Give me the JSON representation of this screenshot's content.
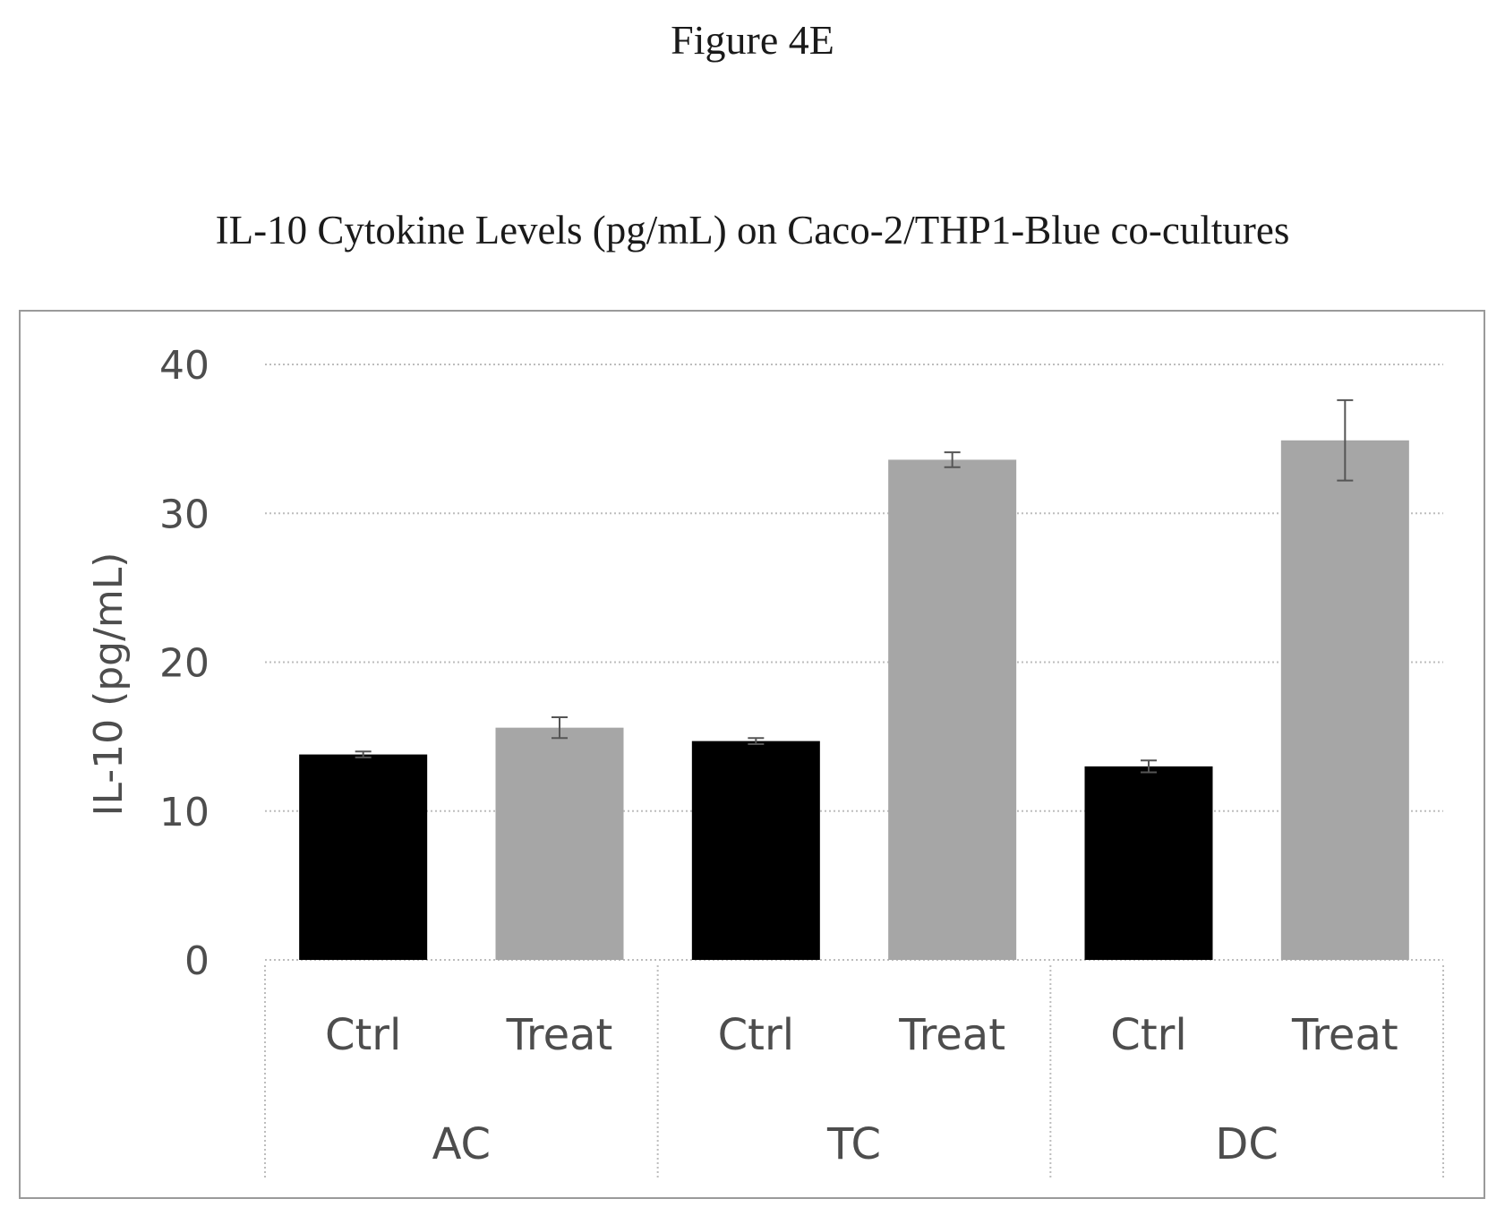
{
  "figure_label": "Figure 4E",
  "chart_data": {
    "type": "bar",
    "title": "IL-10 Cytokine Levels (pg/mL) on Caco-2/THP1-Blue co-cultures",
    "xlabel": "",
    "ylabel": "IL-10 (pg/mL)",
    "ylim": [
      0,
      40
    ],
    "yticks": [
      0,
      10,
      20,
      30,
      40
    ],
    "grid": true,
    "legend": "none",
    "groups": [
      {
        "label": "AC",
        "bars": [
          {
            "label": "Ctrl",
            "value": 13.8,
            "error": 0.2,
            "color": "#000000"
          },
          {
            "label": "Treat",
            "value": 15.6,
            "error": 0.7,
            "color": "#a6a6a6"
          }
        ]
      },
      {
        "label": "TC",
        "bars": [
          {
            "label": "Ctrl",
            "value": 14.7,
            "error": 0.2,
            "color": "#000000"
          },
          {
            "label": "Treat",
            "value": 33.6,
            "error": 0.5,
            "color": "#a6a6a6"
          }
        ]
      },
      {
        "label": "DC",
        "bars": [
          {
            "label": "Ctrl",
            "value": 13.0,
            "error": 0.4,
            "color": "#000000"
          },
          {
            "label": "Treat",
            "value": 34.9,
            "error": 2.7,
            "color": "#a6a6a6"
          }
        ]
      }
    ]
  }
}
